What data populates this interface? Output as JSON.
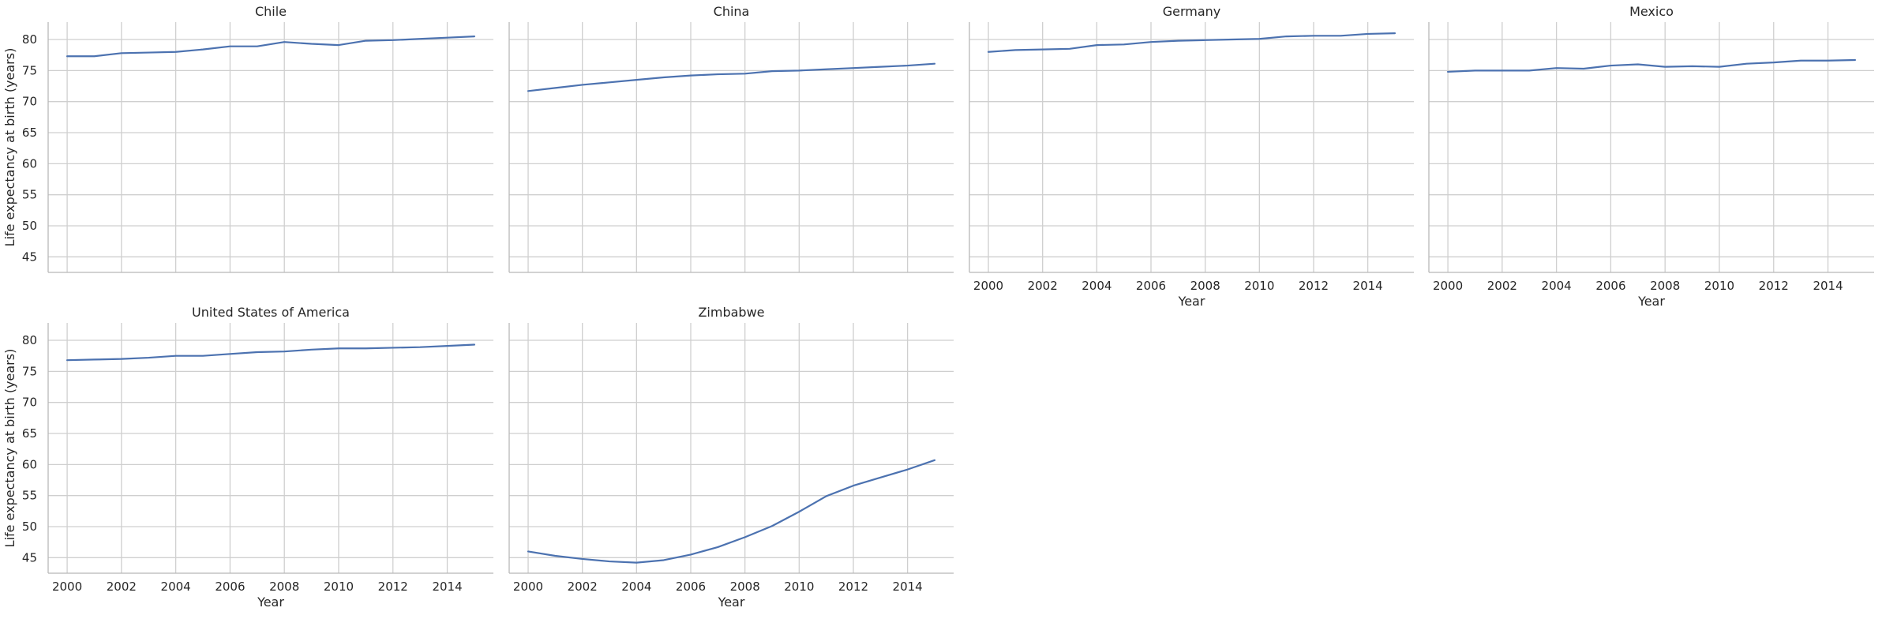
{
  "chart_data": {
    "type": "line",
    "layout": "facet-grid",
    "xlabel": "Year",
    "ylabel": "Life expectancy at birth (years)",
    "x_ticks": [
      2000,
      2002,
      2004,
      2006,
      2008,
      2010,
      2012,
      2014
    ],
    "y_ticks": [
      45,
      50,
      55,
      60,
      65,
      70,
      75,
      80
    ],
    "xlim": [
      1999.3,
      2015.7
    ],
    "ylim": [
      42.5,
      82.8
    ],
    "grid": true,
    "line_color": "#4c72b0",
    "x": [
      2000,
      2001,
      2002,
      2003,
      2004,
      2005,
      2006,
      2007,
      2008,
      2009,
      2010,
      2011,
      2012,
      2013,
      2014,
      2015
    ],
    "facets": [
      {
        "title": "Chile",
        "values": [
          77.3,
          77.3,
          77.8,
          77.9,
          78.0,
          78.4,
          78.9,
          78.9,
          79.6,
          79.3,
          79.1,
          79.8,
          79.9,
          80.1,
          80.3,
          80.5
        ]
      },
      {
        "title": "China",
        "values": [
          71.7,
          72.2,
          72.7,
          73.1,
          73.5,
          73.9,
          74.2,
          74.4,
          74.5,
          74.9,
          75.0,
          75.2,
          75.4,
          75.6,
          75.8,
          76.1
        ]
      },
      {
        "title": "Germany",
        "values": [
          78.0,
          78.3,
          78.4,
          78.5,
          79.1,
          79.2,
          79.6,
          79.8,
          79.9,
          80.0,
          80.1,
          80.5,
          80.6,
          80.6,
          80.9,
          81.0
        ]
      },
      {
        "title": "Mexico",
        "values": [
          74.8,
          75.0,
          75.0,
          75.0,
          75.4,
          75.3,
          75.8,
          76.0,
          75.6,
          75.7,
          75.6,
          76.1,
          76.3,
          76.6,
          76.6,
          76.7
        ]
      },
      {
        "title": "United States of America",
        "values": [
          76.8,
          76.9,
          77.0,
          77.2,
          77.5,
          77.5,
          77.8,
          78.1,
          78.2,
          78.5,
          78.7,
          78.7,
          78.8,
          78.9,
          79.1,
          79.3
        ]
      },
      {
        "title": "Zimbabwe",
        "values": [
          46.0,
          45.3,
          44.8,
          44.4,
          44.2,
          44.6,
          45.5,
          46.7,
          48.3,
          50.1,
          52.4,
          54.9,
          56.6,
          57.9,
          59.2,
          60.7
        ]
      }
    ]
  }
}
